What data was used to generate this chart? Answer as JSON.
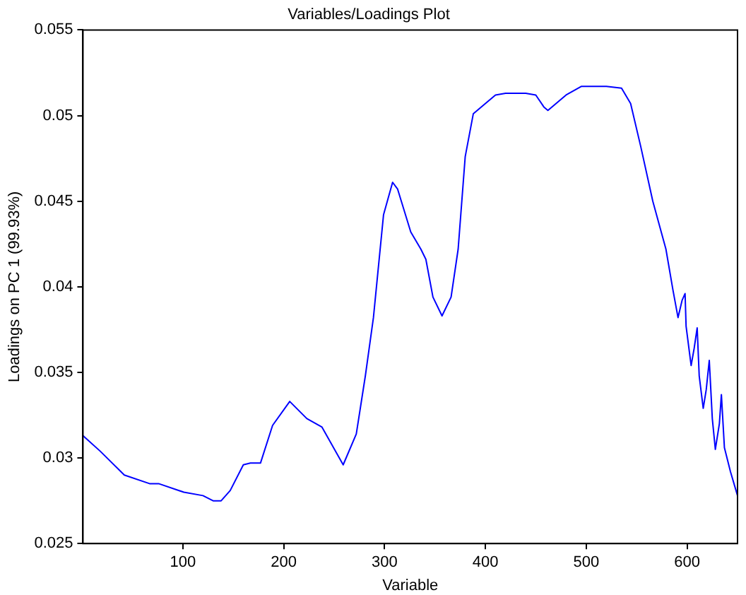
{
  "chart_data": {
    "type": "line",
    "title": "Variables/Loadings Plot",
    "xlabel": "Variable",
    "ylabel": "Loadings on PC 1 (99.93%)",
    "series": [
      {
        "color": "#0000ff",
        "x": [
          1,
          18,
          42,
          67,
          76,
          101,
          120,
          130,
          138,
          147,
          160,
          167,
          177,
          189,
          206,
          223,
          238,
          259,
          272,
          281,
          289,
          299,
          308,
          313,
          326,
          336,
          341,
          348,
          357,
          366,
          373,
          380,
          388,
          400,
          410,
          420,
          440,
          450,
          458,
          462,
          468,
          480,
          495,
          520,
          535,
          544,
          554,
          566,
          579,
          586,
          591,
          595,
          598,
          599,
          604,
          607,
          610,
          612,
          616,
          619,
          622,
          625,
          628,
          632,
          634,
          637,
          643,
          650
        ],
        "values": [
          0.0313,
          0.0304,
          0.029,
          0.0285,
          0.0285,
          0.028,
          0.0278,
          0.0275,
          0.0275,
          0.0281,
          0.0296,
          0.0297,
          0.0297,
          0.0319,
          0.0333,
          0.0323,
          0.0318,
          0.0296,
          0.0314,
          0.0348,
          0.0382,
          0.0442,
          0.0461,
          0.0457,
          0.0432,
          0.0422,
          0.0416,
          0.0394,
          0.0383,
          0.0394,
          0.0422,
          0.0476,
          0.0501,
          0.0507,
          0.0512,
          0.0513,
          0.0513,
          0.0512,
          0.0505,
          0.0503,
          0.0506,
          0.0512,
          0.0517,
          0.0517,
          0.0516,
          0.0507,
          0.0482,
          0.045,
          0.0422,
          0.0398,
          0.0382,
          0.0392,
          0.0396,
          0.0377,
          0.0354,
          0.0364,
          0.0376,
          0.0348,
          0.0329,
          0.034,
          0.0357,
          0.0323,
          0.0305,
          0.032,
          0.0337,
          0.0306,
          0.0292,
          0.0278
        ]
      }
    ],
    "xlim": [
      1,
      650
    ],
    "xticks": [
      100,
      200,
      300,
      400,
      500,
      600
    ],
    "ylim": [
      0.025,
      0.055
    ],
    "yticks": [
      0.025,
      0.03,
      0.035,
      0.04,
      0.045,
      0.05,
      0.055
    ],
    "grid": false,
    "legend": false,
    "marker": "none",
    "line_style": "solid"
  }
}
